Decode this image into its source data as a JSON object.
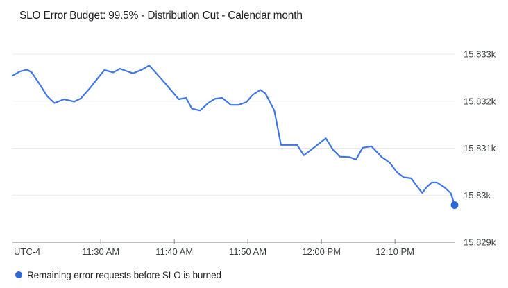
{
  "header": {
    "title": "SLO Error Budget: 99.5% - Distribution Cut - Calendar month"
  },
  "legend": {
    "items": [
      {
        "label": "Remaining error requests before SLO is burned",
        "color": "#2d68d8"
      }
    ]
  },
  "colors": {
    "line": "#3d76e8",
    "end_marker": "#2d68d8",
    "grid": "#e9e9e9",
    "axis": "#80868b",
    "tick": "#80868b",
    "axis_text": "#3c4043",
    "title_text": "#202124"
  },
  "chart_data": {
    "type": "line",
    "title": "SLO Error Budget: 99.5% - Distribution Cut - Calendar month",
    "xlabel": "",
    "ylabel": "",
    "x_axis": {
      "timezone_label": "UTC-4",
      "t_unit": "minutes since 11:18 AM",
      "range": [
        0,
        60.6
      ],
      "ticks": [
        {
          "t": 12,
          "label": "11:30 AM"
        },
        {
          "t": 22,
          "label": "11:40 AM"
        },
        {
          "t": 32,
          "label": "11:50 AM"
        },
        {
          "t": 42,
          "label": "12:00 PM"
        },
        {
          "t": 52,
          "label": "12:10 PM"
        }
      ]
    },
    "y_axis": {
      "range": [
        15829,
        15833.3
      ],
      "ticks": [
        {
          "v": 15833,
          "label": "15.833k"
        },
        {
          "v": 15832,
          "label": "15.832k"
        },
        {
          "v": 15831,
          "label": "15.831k"
        },
        {
          "v": 15830,
          "label": "15.83k"
        },
        {
          "v": 15829,
          "label": "15.829k"
        }
      ]
    },
    "grid": true,
    "legend_position": "bottom-left",
    "series": [
      {
        "name": "Remaining error requests before SLO is burned",
        "end_marker": true,
        "points": [
          [
            0.0,
            15832.54
          ],
          [
            1.0,
            15832.63
          ],
          [
            2.0,
            15832.67
          ],
          [
            2.6,
            15832.61
          ],
          [
            3.7,
            15832.36
          ],
          [
            4.7,
            15832.11
          ],
          [
            5.7,
            15831.96
          ],
          [
            7.0,
            15832.04
          ],
          [
            8.4,
            15831.99
          ],
          [
            9.3,
            15832.06
          ],
          [
            10.6,
            15832.29
          ],
          [
            11.5,
            15832.47
          ],
          [
            12.5,
            15832.66
          ],
          [
            13.7,
            15832.61
          ],
          [
            14.6,
            15832.69
          ],
          [
            16.4,
            15832.59
          ],
          [
            17.6,
            15832.67
          ],
          [
            18.6,
            15832.76
          ],
          [
            20.7,
            15832.39
          ],
          [
            22.6,
            15832.04
          ],
          [
            23.6,
            15832.07
          ],
          [
            24.4,
            15831.84
          ],
          [
            25.5,
            15831.8
          ],
          [
            26.6,
            15831.96
          ],
          [
            27.5,
            15832.05
          ],
          [
            28.5,
            15832.07
          ],
          [
            29.7,
            15831.92
          ],
          [
            30.7,
            15831.92
          ],
          [
            31.8,
            15831.98
          ],
          [
            32.7,
            15832.14
          ],
          [
            33.7,
            15832.24
          ],
          [
            34.4,
            15832.16
          ],
          [
            35.6,
            15831.8
          ],
          [
            36.5,
            15831.07
          ],
          [
            38.7,
            15831.07
          ],
          [
            39.6,
            15830.85
          ],
          [
            40.8,
            15830.99
          ],
          [
            41.7,
            15831.1
          ],
          [
            42.6,
            15831.21
          ],
          [
            43.6,
            15830.96
          ],
          [
            44.5,
            15830.82
          ],
          [
            45.8,
            15830.81
          ],
          [
            46.7,
            15830.76
          ],
          [
            47.6,
            15831.01
          ],
          [
            48.8,
            15831.04
          ],
          [
            50.2,
            15830.81
          ],
          [
            51.3,
            15830.69
          ],
          [
            52.3,
            15830.48
          ],
          [
            53.2,
            15830.38
          ],
          [
            54.2,
            15830.36
          ],
          [
            54.9,
            15830.21
          ],
          [
            55.7,
            15830.05
          ],
          [
            56.3,
            15830.17
          ],
          [
            57.0,
            15830.27
          ],
          [
            57.7,
            15830.27
          ],
          [
            58.7,
            15830.17
          ],
          [
            59.6,
            15830.04
          ],
          [
            60.1,
            15829.79
          ]
        ]
      }
    ]
  }
}
